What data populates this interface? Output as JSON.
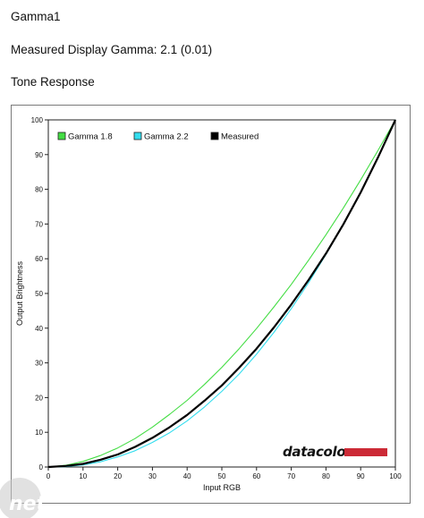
{
  "page": {
    "title": "Gamma1",
    "measured_text": "Measured Display Gamma: 2.1 (0.01)",
    "section_title": "Tone Response"
  },
  "brand": {
    "logo_text": "datacolor",
    "logo_bar_color": "#cc2a36"
  },
  "watermark": {
    "text": "net"
  },
  "chart_data": {
    "type": "line",
    "title": "",
    "xlabel": "Input RGB",
    "ylabel": "Output Brightness",
    "xlim": [
      0,
      100
    ],
    "ylim": [
      0,
      100
    ],
    "x_ticks": [
      0,
      10,
      20,
      30,
      40,
      50,
      60,
      70,
      80,
      90,
      100
    ],
    "y_ticks": [
      0,
      10,
      20,
      30,
      40,
      50,
      60,
      70,
      80,
      90,
      100
    ],
    "grid": false,
    "legend_position": "top-left",
    "x": [
      0,
      5,
      10,
      15,
      20,
      25,
      30,
      35,
      40,
      45,
      50,
      55,
      60,
      65,
      70,
      75,
      80,
      85,
      90,
      95,
      100
    ],
    "series": [
      {
        "name": "Gamma 1.8",
        "color": "#44dd44",
        "values": [
          0,
          0.5,
          1.6,
          3.3,
          5.5,
          8.2,
          11.5,
          15.2,
          19.2,
          23.8,
          28.7,
          34.1,
          39.9,
          46.1,
          52.6,
          59.6,
          66.9,
          74.6,
          82.7,
          91.2,
          100
        ]
      },
      {
        "name": "Gamma 2.2",
        "color": "#33ddee",
        "values": [
          0,
          0.1,
          0.6,
          1.5,
          2.9,
          4.7,
          7.1,
          9.9,
          13.3,
          17.3,
          21.8,
          26.8,
          32.5,
          38.8,
          45.6,
          53.1,
          61.2,
          69.9,
          79.3,
          89.3,
          100
        ]
      },
      {
        "name": "Measured",
        "color": "#000000",
        "values": [
          0,
          0.3,
          0.9,
          2.1,
          3.6,
          5.8,
          8.4,
          11.5,
          15.0,
          19.1,
          23.5,
          28.6,
          34.1,
          40.2,
          46.8,
          53.9,
          61.5,
          69.9,
          79.1,
          89.2,
          100
        ]
      }
    ]
  }
}
